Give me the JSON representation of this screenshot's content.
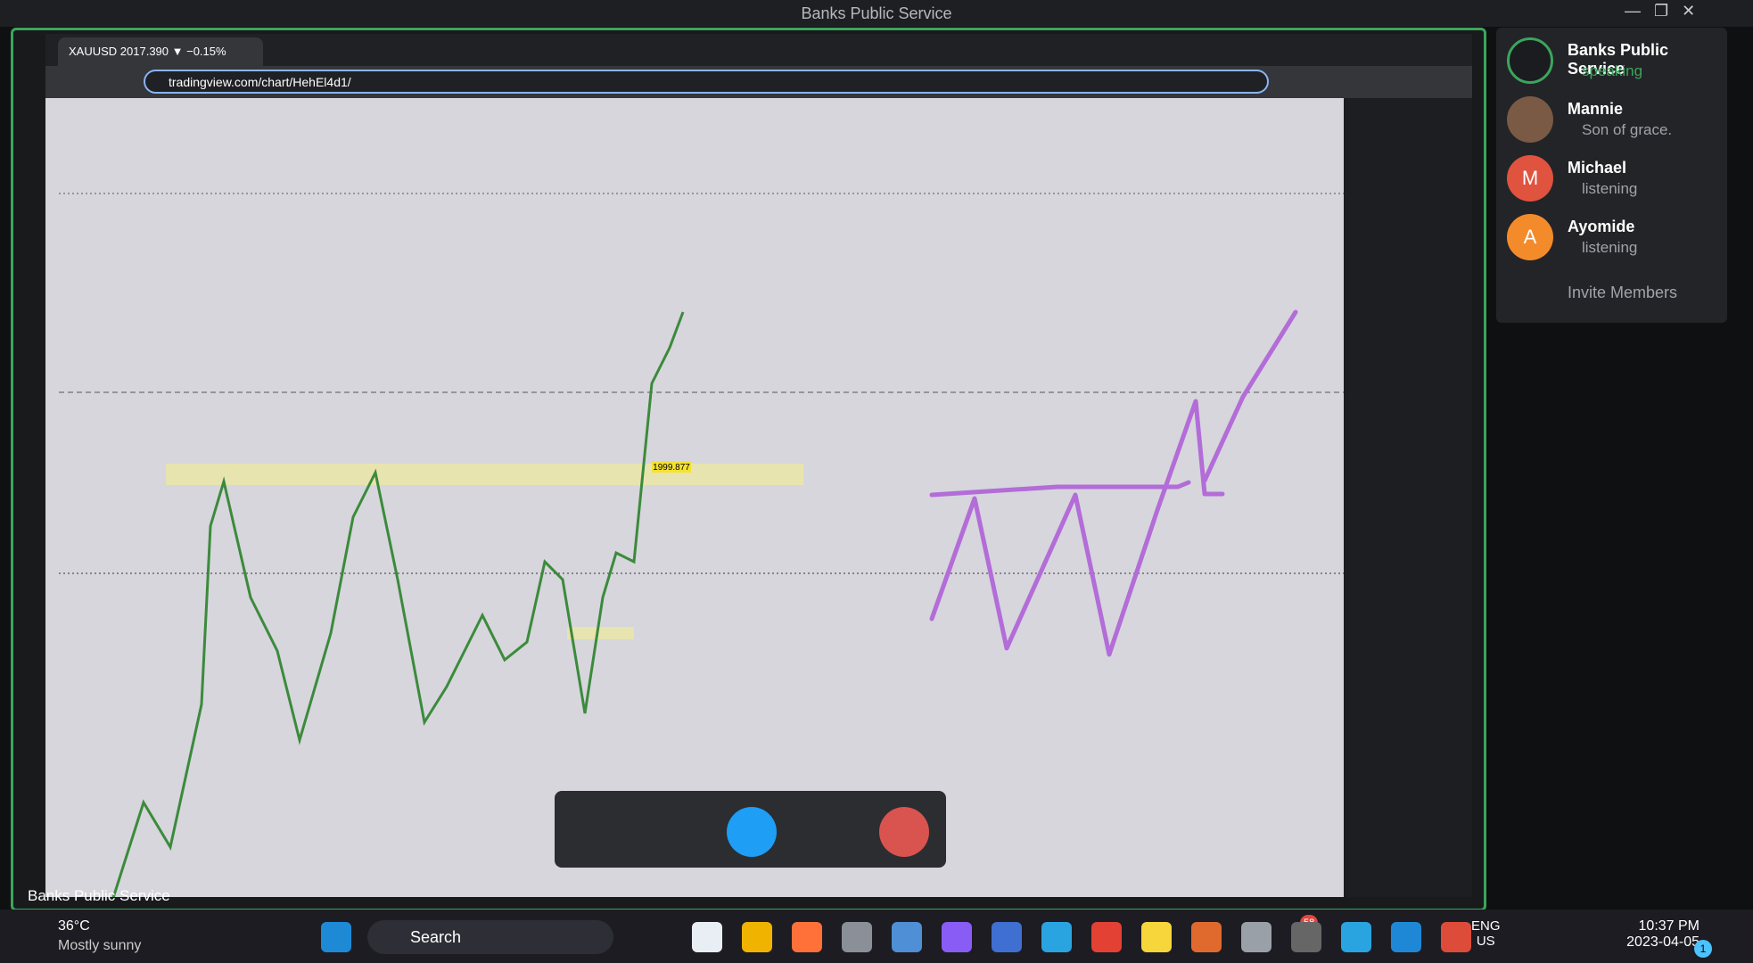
{
  "window": {
    "title": "Banks Public Service"
  },
  "browser": {
    "tab_title": "XAUUSD 2017.390 ▼ −0.15%",
    "url": "tradingview.com/chart/HehEl4d1/"
  },
  "chart": {
    "price_label": "1999.877"
  },
  "share_label": "Banks Public Service",
  "participants": [
    {
      "name": "Banks Public Service",
      "status": "speaking",
      "initial": ""
    },
    {
      "name": "Mannie",
      "status": "Son of grace.",
      "initial": ""
    },
    {
      "name": "Michael",
      "status": "listening",
      "initial": "M"
    },
    {
      "name": "Ayomide",
      "status": "listening",
      "initial": "A"
    }
  ],
  "invite": "Invite Members",
  "taskbar": {
    "temperature": "36°C",
    "weather": "Mostly sunny",
    "search": "Search",
    "lang": "ENG",
    "region": "US",
    "time": "10:37 PM",
    "date": "2023-04-05",
    "telegram_badge": "58",
    "notifications": "1"
  }
}
